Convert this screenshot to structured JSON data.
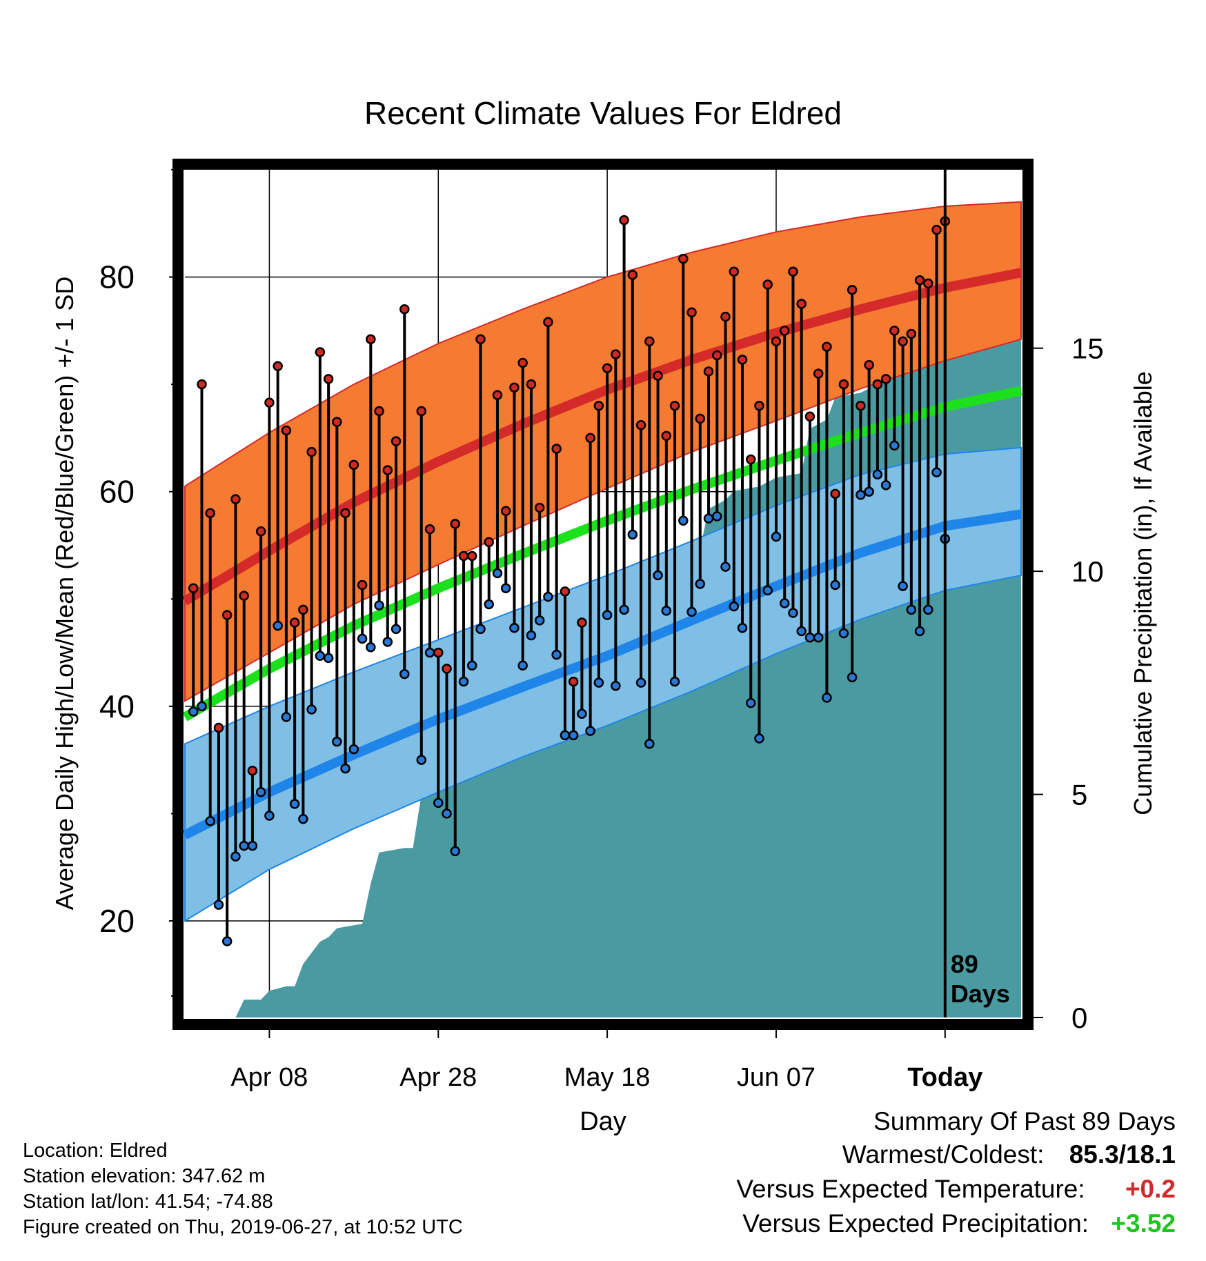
{
  "title": "Recent Climate Values For Eldred",
  "colors": {
    "high_band": "#f57a32",
    "high_mean": "#d42a2a",
    "low_band": "#7fbfe6",
    "low_mean": "#1f85e8",
    "mean_line": "#1be01b",
    "precip": "#4a9aa2",
    "high_dot": "#cc2a22",
    "low_dot": "#2a78d4",
    "positive_temp": "#d12a2a",
    "positive_precip": "#1fc41f"
  },
  "chart_data": {
    "type": "line",
    "xlabel": "Day",
    "ylabel": "Average Daily High/Low/Mean (Red/Blue/Green) +/- 1 SD",
    "y2label": "Cumulative Precipitation (in), If Available",
    "x_tick_labels": [
      "Apr 08",
      "Apr 28",
      "May 18",
      "Jun 07",
      "Today"
    ],
    "x_tick_days": [
      10,
      30,
      50,
      70,
      90
    ],
    "x_range": [
      0,
      99
    ],
    "ylim": [
      11,
      90
    ],
    "y_ticks": [
      20,
      40,
      60,
      80
    ],
    "y2lim": [
      0,
      19
    ],
    "y2_ticks": [
      0,
      5,
      10,
      15
    ],
    "today_day": 90,
    "today_label": [
      "89",
      "Days"
    ],
    "grid": true,
    "normals": {
      "days": [
        0,
        10,
        20,
        30,
        40,
        50,
        60,
        70,
        80,
        90,
        99
      ],
      "high_mean": [
        49.8,
        54.5,
        59.0,
        62.8,
        66.3,
        69.5,
        72.3,
        74.8,
        77.0,
        79.0,
        80.4
      ],
      "high_sd_upper": [
        60.5,
        65.5,
        70.0,
        73.8,
        77.0,
        80.0,
        82.3,
        84.2,
        85.6,
        86.6,
        87.0
      ],
      "high_sd_lower": [
        40.5,
        45.0,
        49.5,
        53.2,
        56.8,
        60.3,
        63.7,
        66.6,
        69.6,
        72.2,
        74.2
      ],
      "mean": [
        39.0,
        43.5,
        47.5,
        51.0,
        54.2,
        57.3,
        60.2,
        62.9,
        65.5,
        67.9,
        69.4
      ],
      "low_mean": [
        28.0,
        32.0,
        35.5,
        38.8,
        41.8,
        44.7,
        48.0,
        51.2,
        54.3,
        56.8,
        57.9
      ],
      "low_sd_upper": [
        36.5,
        40.0,
        43.2,
        46.2,
        49.2,
        52.2,
        55.4,
        58.7,
        61.6,
        63.5,
        64.1
      ],
      "low_sd_lower": [
        20.0,
        24.8,
        28.6,
        32.0,
        35.3,
        38.2,
        41.4,
        44.9,
        48.1,
        50.8,
        52.2
      ]
    },
    "daily_highs": [
      51.0,
      70.0,
      58.0,
      38.0,
      48.5,
      59.3,
      50.3,
      34.0,
      56.3,
      68.3,
      71.7,
      65.7,
      47.8,
      49.0,
      63.7,
      73.0,
      70.5,
      66.5,
      58.0,
      62.5,
      51.3,
      74.2,
      67.5,
      62.0,
      64.7,
      77.0,
      null,
      67.5,
      56.5,
      45.0,
      43.5,
      57.0,
      54.0,
      54.0,
      74.2,
      55.3,
      69.0,
      58.2,
      69.7,
      72.0,
      70.0,
      58.5,
      75.8,
      64.0,
      50.7,
      42.3,
      47.8,
      65.0,
      68.0,
      71.5,
      72.8,
      85.3,
      80.2,
      66.2,
      74.0,
      70.8,
      65.2,
      68.0,
      81.7,
      76.7,
      66.8,
      71.2,
      72.7,
      76.3,
      80.5,
      72.3,
      63.0,
      68.0,
      79.3,
      74.0,
      75.0,
      80.5,
      77.5,
      67.0,
      71.0,
      73.5,
      59.8,
      70.0,
      78.8,
      68.0,
      71.8,
      70.0,
      70.5,
      75.0,
      74.0,
      74.7,
      79.7,
      79.4,
      84.4,
      85.2
    ],
    "daily_lows": [
      39.5,
      40.0,
      29.3,
      21.5,
      18.1,
      26.0,
      27.0,
      27.0,
      32.0,
      29.8,
      47.5,
      39.0,
      30.9,
      29.5,
      39.7,
      44.7,
      44.5,
      36.7,
      34.2,
      36.0,
      46.3,
      45.5,
      49.4,
      46.0,
      47.2,
      43.0,
      null,
      35.0,
      45.0,
      31.0,
      30.0,
      26.5,
      42.3,
      43.8,
      47.2,
      49.5,
      52.4,
      51.0,
      47.3,
      43.8,
      46.6,
      48.0,
      50.2,
      44.8,
      37.3,
      37.3,
      39.3,
      37.7,
      42.2,
      48.5,
      41.9,
      49.0,
      56.0,
      42.2,
      36.5,
      52.2,
      48.9,
      42.3,
      57.3,
      48.8,
      51.4,
      57.5,
      57.7,
      53.0,
      49.3,
      47.3,
      40.3,
      37.0,
      50.8,
      55.8,
      49.6,
      48.7,
      47.0,
      46.4,
      46.4,
      40.8,
      51.3,
      46.8,
      42.7,
      59.7,
      60.0,
      61.6,
      60.6,
      64.3,
      51.2,
      49.0,
      47.0,
      49.0,
      61.8,
      55.6
    ],
    "cumulative_precip": [
      [
        0,
        0
      ],
      [
        6,
        0
      ],
      [
        7,
        0.4
      ],
      [
        9,
        0.4
      ],
      [
        10,
        0.6
      ],
      [
        12,
        0.7
      ],
      [
        13,
        0.7
      ],
      [
        14,
        1.2
      ],
      [
        16,
        1.7
      ],
      [
        17,
        1.8
      ],
      [
        18,
        2.0
      ],
      [
        21,
        2.1
      ],
      [
        22,
        3.0
      ],
      [
        23,
        3.7
      ],
      [
        26,
        3.8
      ],
      [
        27,
        3.8
      ],
      [
        28,
        5.0
      ],
      [
        29,
        5.2
      ],
      [
        31,
        5.4
      ],
      [
        34,
        5.5
      ],
      [
        35,
        5.7
      ],
      [
        36,
        6.0
      ],
      [
        37,
        6.4
      ],
      [
        40,
        6.5
      ],
      [
        41,
        6.5
      ],
      [
        42,
        6.7
      ],
      [
        43,
        6.8
      ],
      [
        44,
        7.4
      ],
      [
        45,
        8.3
      ],
      [
        46,
        8.8
      ],
      [
        47,
        8.9
      ],
      [
        49,
        9.0
      ],
      [
        50,
        9.1
      ],
      [
        52,
        9.1
      ],
      [
        53,
        9.2
      ],
      [
        55,
        9.3
      ],
      [
        57,
        9.4
      ],
      [
        58,
        9.7
      ],
      [
        59,
        10.2
      ],
      [
        60,
        10.3
      ],
      [
        61,
        10.5
      ],
      [
        62,
        11.4
      ],
      [
        64,
        11.6
      ],
      [
        65,
        11.8
      ],
      [
        68,
        11.9
      ],
      [
        69,
        12.0
      ],
      [
        70,
        12.1
      ],
      [
        73,
        12.2
      ],
      [
        74,
        13.2
      ],
      [
        75,
        13.3
      ],
      [
        76,
        13.4
      ],
      [
        77,
        13.9
      ],
      [
        80,
        14.0
      ],
      [
        81,
        14.1
      ],
      [
        82,
        14.9
      ],
      [
        83,
        15.2
      ],
      [
        84,
        15.7
      ],
      [
        85,
        16.0
      ],
      [
        87,
        16.0
      ],
      [
        88,
        16.1
      ],
      [
        90,
        16.2
      ],
      [
        99,
        16.2
      ]
    ]
  },
  "info": {
    "location": "Location: Eldred",
    "elevation": "Station elevation: 347.62 m",
    "latlon": "Station lat/lon: 41.54; -74.88",
    "created": "Figure created on Thu, 2019-06-27, at 10:52 UTC"
  },
  "summary": {
    "heading": "Summary Of Past 89 Days",
    "extremes_label": "Warmest/Coldest:",
    "extremes_value": "85.3/18.1",
    "temp_label": "Versus Expected Temperature:",
    "temp_value": "+0.2",
    "precip_label": "Versus Expected Precipitation:",
    "precip_value": "+3.52"
  }
}
